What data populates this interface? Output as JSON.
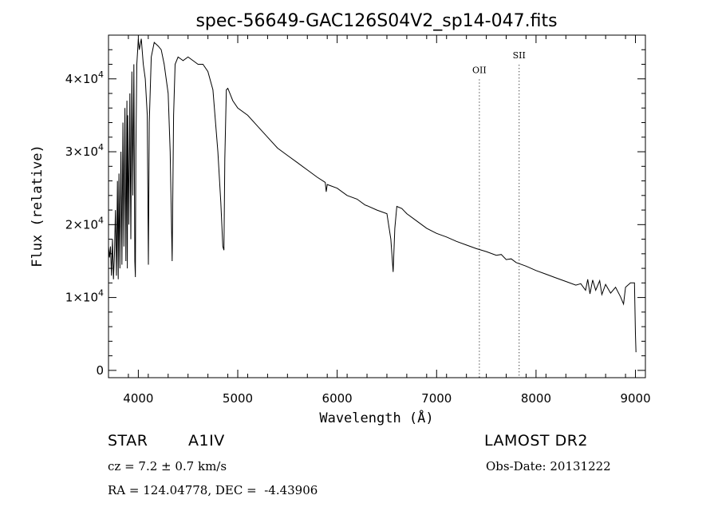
{
  "chart_data": {
    "type": "line",
    "title": "spec-56649-GAC126S04V2_sp14-047.fits",
    "xlabel": "Wavelength (Å)",
    "ylabel": "Flux (relative)",
    "xlim": [
      3700,
      9100
    ],
    "ylim": [
      -1000,
      46000
    ],
    "xticks": [
      4000,
      5000,
      6000,
      7000,
      8000,
      9000
    ],
    "xtick_labels": [
      "4000",
      "5000",
      "6000",
      "7000",
      "8000",
      "9000"
    ],
    "yticks": [
      0,
      10000,
      20000,
      30000,
      40000
    ],
    "ytick_labels": [
      {
        "base": "0",
        "exp": ""
      },
      {
        "base": "1×10",
        "exp": "4"
      },
      {
        "base": "2×10",
        "exp": "4"
      },
      {
        "base": "3×10",
        "exp": "4"
      },
      {
        "base": "4×10",
        "exp": "4"
      }
    ],
    "grid": false,
    "series": [
      {
        "x": [
          3700,
          3710,
          3720,
          3730,
          3740,
          3750,
          3760,
          3770,
          3780,
          3790,
          3798,
          3805,
          3815,
          3825,
          3835,
          3845,
          3855,
          3865,
          3875,
          3885,
          3889,
          3893,
          3905,
          3915,
          3925,
          3935,
          3945,
          3955,
          3965,
          3970,
          3975,
          3985,
          4000,
          4010,
          4030,
          4050,
          4070,
          4090,
          4101,
          4110,
          4130,
          4160,
          4200,
          4230,
          4260,
          4300,
          4320,
          4340,
          4355,
          4370,
          4400,
          4450,
          4500,
          4550,
          4600,
          4650,
          4700,
          4750,
          4800,
          4830,
          4850,
          4861,
          4870,
          4885,
          4900,
          4950,
          5000,
          5100,
          5200,
          5300,
          5400,
          5500,
          5600,
          5700,
          5800,
          5880,
          5890,
          5900,
          6000,
          6100,
          6200,
          6280,
          6300,
          6400,
          6500,
          6540,
          6563,
          6580,
          6600,
          6650,
          6700,
          6800,
          6900,
          7000,
          7100,
          7200,
          7300,
          7400,
          7500,
          7600,
          7650,
          7700,
          7750,
          7800,
          7900,
          8000,
          8100,
          8200,
          8300,
          8400,
          8450,
          8498,
          8520,
          8542,
          8570,
          8600,
          8640,
          8662,
          8700,
          8750,
          8800,
          8850,
          8880,
          8900,
          8950,
          8990,
          9000,
          9005
        ],
        "y": [
          17000,
          15500,
          17000,
          13000,
          18000,
          12500,
          16000,
          22000,
          13000,
          26000,
          12500,
          27000,
          14000,
          30000,
          14500,
          34000,
          17000,
          36000,
          15000,
          37000,
          14000,
          35000,
          20000,
          38000,
          18000,
          41000,
          24000,
          42000,
          15000,
          12800,
          30000,
          42000,
          45500,
          44000,
          45500,
          42000,
          40000,
          35000,
          14500,
          34000,
          43000,
          45000,
          44500,
          44000,
          42000,
          38000,
          30000,
          15000,
          35000,
          42000,
          43000,
          42500,
          43000,
          42500,
          42000,
          42000,
          41000,
          38500,
          30000,
          23000,
          17000,
          16500,
          29000,
          38500,
          38700,
          37000,
          36000,
          35000,
          33500,
          32000,
          30500,
          29500,
          28500,
          27500,
          26500,
          25800,
          24500,
          25500,
          25000,
          24000,
          23500,
          22700,
          22600,
          22000,
          21500,
          18000,
          13500,
          19500,
          22500,
          22200,
          21500,
          20500,
          19500,
          18800,
          18300,
          17700,
          17200,
          16700,
          16300,
          15800,
          15900,
          15200,
          15300,
          14800,
          14300,
          13700,
          13200,
          12700,
          12200,
          11700,
          11900,
          11000,
          12500,
          10500,
          12400,
          11000,
          12300,
          10400,
          11800,
          10600,
          11400,
          10100,
          9100,
          11400,
          12000,
          12000,
          5000,
          2500
        ]
      }
    ],
    "annotations": [
      {
        "text": "OII",
        "x": 7430,
        "y": 40800,
        "line_x": 7430
      },
      {
        "text": "SII",
        "x": 7830,
        "y": 42800,
        "line_x": 7830
      }
    ]
  },
  "info": {
    "object_type": "STAR",
    "spectral_class": "A1IV",
    "survey": "LAMOST DR2",
    "cz_line": "cz = 7.2 ± 0.7 km/s",
    "obs_date_line": "Obs-Date: 20131222",
    "coords_line": "RA = 124.04778, DEC =  -4.43906"
  }
}
